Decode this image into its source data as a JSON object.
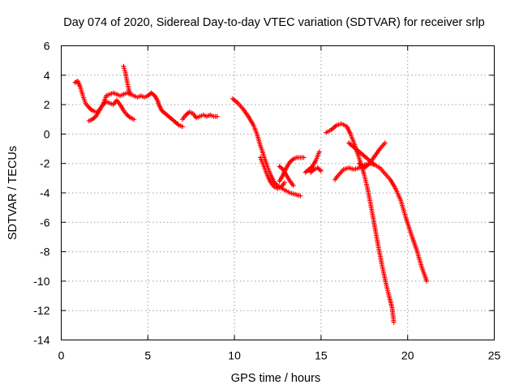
{
  "chart_data": {
    "type": "scatter",
    "title": "Day 074 of 2020, Sidereal Day-to-day VTEC variation (SDTVAR) for receiver srlp",
    "xlabel": "GPS time / hours",
    "ylabel": "SDTVAR / TECUs",
    "xlim": [
      0,
      25
    ],
    "ylim": [
      -14,
      6
    ],
    "xticks": [
      0,
      5,
      10,
      15,
      20,
      25
    ],
    "yticks": [
      -14,
      -12,
      -10,
      -8,
      -6,
      -4,
      -2,
      0,
      2,
      4,
      6
    ],
    "grid": true,
    "marker": "plus",
    "color": "#ff0000",
    "series": [
      {
        "x": [
          0.8,
          0.95,
          1.1,
          1.25,
          1.4,
          1.6,
          1.8,
          2.0,
          2.2,
          2.4,
          2.6
        ],
        "y": [
          3.5,
          3.6,
          3.2,
          2.6,
          2.1,
          1.8,
          1.6,
          1.5,
          1.6,
          2.0,
          2.6
        ]
      },
      {
        "x": [
          2.6,
          2.8,
          3.0,
          3.2,
          3.4,
          3.6,
          3.8,
          4.0,
          4.2,
          4.4,
          4.6,
          4.8,
          5.0,
          5.2,
          5.4,
          5.6
        ],
        "y": [
          2.6,
          2.7,
          2.8,
          2.7,
          2.6,
          2.7,
          2.8,
          2.7,
          2.6,
          2.5,
          2.6,
          2.5,
          2.6,
          2.8,
          2.6,
          2.2
        ]
      },
      {
        "x": [
          1.6,
          1.8,
          2.0,
          2.2,
          2.4,
          2.6,
          2.8,
          3.0,
          3.2,
          3.4,
          3.6,
          3.8,
          4.0,
          4.2
        ],
        "y": [
          0.9,
          1.0,
          1.2,
          1.6,
          2.0,
          2.2,
          2.1,
          2.0,
          2.3,
          2.0,
          1.6,
          1.3,
          1.1,
          1.0
        ]
      },
      {
        "x": [
          3.6,
          3.7,
          3.8,
          3.9,
          4.0
        ],
        "y": [
          4.6,
          4.2,
          3.6,
          3.0,
          2.7
        ]
      },
      {
        "x": [
          5.6,
          5.8,
          6.0,
          6.2,
          6.4,
          6.6,
          6.8,
          7.0
        ],
        "y": [
          2.1,
          1.6,
          1.4,
          1.2,
          1.0,
          0.8,
          0.6,
          0.5
        ]
      },
      {
        "x": [
          7.0,
          7.2,
          7.4,
          7.6,
          7.8,
          8.0,
          8.2,
          8.4,
          8.6,
          8.8,
          9.0
        ],
        "y": [
          1.0,
          1.3,
          1.5,
          1.4,
          1.1,
          1.2,
          1.3,
          1.2,
          1.3,
          1.2,
          1.2
        ]
      },
      {
        "x": [
          9.9,
          10.2,
          10.5,
          10.8,
          11.1,
          11.3,
          11.5,
          11.7,
          11.9,
          12.1,
          12.3,
          12.6,
          12.9,
          13.2,
          13.5,
          13.8
        ],
        "y": [
          2.4,
          2.1,
          1.7,
          1.2,
          0.6,
          0.0,
          -0.8,
          -1.5,
          -2.2,
          -2.8,
          -3.3,
          -3.6,
          -3.8,
          -4.0,
          -4.1,
          -4.2
        ]
      },
      {
        "x": [
          11.5,
          11.7,
          11.9,
          12.1,
          12.3,
          12.5,
          12.7,
          12.9
        ],
        "y": [
          -1.6,
          -2.2,
          -2.8,
          -3.3,
          -3.6,
          -3.7,
          -3.6,
          -3.3
        ]
      },
      {
        "x": [
          12.6,
          12.8,
          13.0,
          13.2,
          13.4,
          13.6,
          13.8,
          14.0
        ],
        "y": [
          -3.2,
          -2.8,
          -2.3,
          -1.9,
          -1.7,
          -1.6,
          -1.6,
          -1.6
        ]
      },
      {
        "x": [
          12.6,
          12.8,
          13.0,
          13.2,
          13.4
        ],
        "y": [
          -2.2,
          -2.4,
          -2.8,
          -3.2,
          -3.5
        ]
      },
      {
        "x": [
          14.1,
          14.3,
          14.5,
          14.7,
          14.9
        ],
        "y": [
          -2.6,
          -2.4,
          -2.2,
          -1.8,
          -1.2
        ]
      },
      {
        "x": [
          14.4,
          14.6,
          14.8,
          15.0
        ],
        "y": [
          -2.6,
          -2.4,
          -2.3,
          -2.5
        ]
      },
      {
        "x": [
          15.3,
          15.6,
          15.9,
          16.2,
          16.5,
          16.7,
          16.9,
          17.1,
          17.3,
          17.5,
          17.7,
          17.9,
          18.1,
          18.3,
          18.5,
          18.7,
          18.9,
          19.1,
          19.2
        ],
        "y": [
          0.1,
          0.3,
          0.6,
          0.7,
          0.5,
          0.0,
          -0.6,
          -1.3,
          -2.0,
          -2.8,
          -3.8,
          -5.0,
          -6.3,
          -7.6,
          -8.8,
          -9.9,
          -10.9,
          -11.8,
          -12.8
        ]
      },
      {
        "x": [
          15.8,
          16.0,
          16.3,
          16.6,
          16.9,
          17.2,
          17.5,
          17.8,
          18.1,
          18.4,
          18.7,
          19.0,
          19.3,
          19.6,
          19.9,
          20.2,
          20.5,
          20.8,
          21.1
        ],
        "y": [
          -3.1,
          -2.8,
          -2.4,
          -2.3,
          -2.4,
          -2.3,
          -2.1,
          -2.0,
          -2.1,
          -2.3,
          -2.7,
          -3.1,
          -3.7,
          -4.5,
          -5.7,
          -6.8,
          -7.8,
          -9.0,
          -10.0
        ]
      },
      {
        "x": [
          16.6,
          16.9,
          17.2,
          17.5,
          17.8,
          18.1
        ],
        "y": [
          -0.6,
          -0.9,
          -1.2,
          -1.5,
          -1.8,
          -2.1
        ]
      },
      {
        "x": [
          17.2,
          17.5,
          17.8,
          18.1,
          18.4,
          18.7
        ],
        "y": [
          -2.0,
          -2.3,
          -2.0,
          -1.5,
          -1.0,
          -0.6
        ]
      }
    ]
  }
}
